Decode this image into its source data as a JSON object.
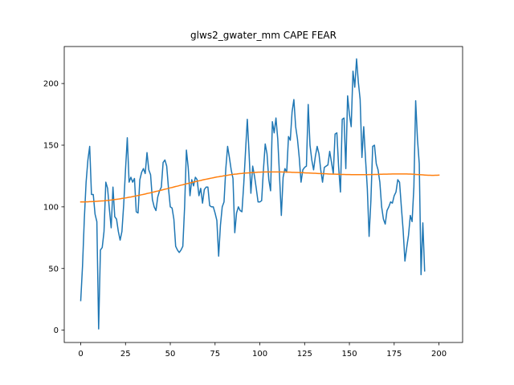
{
  "chart_data": {
    "type": "line",
    "title": "glws2_gwater_mm CAPE FEAR",
    "xlabel": "",
    "ylabel": "",
    "xlim": [
      -9.2,
      213.2
    ],
    "ylim": [
      -10,
      230
    ],
    "x_ticks": [
      0,
      25,
      50,
      75,
      100,
      125,
      150,
      175,
      200
    ],
    "y_ticks": [
      0,
      50,
      100,
      150,
      200
    ],
    "grid": false,
    "series": [
      {
        "color": "#1f77b4",
        "values": [
          24,
          52,
          90,
          120,
          138,
          149,
          110,
          110,
          94,
          88,
          1,
          65,
          67,
          80,
          120,
          115,
          98,
          83,
          116,
          92,
          90,
          80,
          73,
          80,
          102,
          130,
          156,
          120,
          124,
          120,
          123,
          96,
          95,
          122,
          128,
          131,
          127,
          144,
          130,
          126,
          106,
          100,
          97,
          108,
          113,
          116,
          136,
          138,
          133,
          115,
          100,
          99,
          90,
          68,
          65,
          63,
          65,
          68,
          100,
          146,
          132,
          109,
          122,
          117,
          124,
          122,
          109,
          115,
          103,
          114,
          116,
          116,
          101,
          100,
          100,
          95,
          89,
          60,
          85,
          100,
          104,
          131,
          149,
          140,
          130,
          123,
          79,
          95,
          100,
          97,
          96,
          118,
          145,
          171,
          143,
          111,
          133,
          125,
          115,
          104,
          104,
          105,
          130,
          151,
          143,
          122,
          113,
          169,
          160,
          172,
          155,
          125,
          93,
          124,
          131,
          128,
          157,
          154,
          177,
          187,
          165,
          155,
          140,
          120,
          130,
          132,
          133,
          183,
          150,
          138,
          130,
          141,
          149,
          143,
          130,
          120,
          132,
          133,
          134,
          145,
          136,
          127,
          159,
          160,
          132,
          112,
          171,
          172,
          131,
          190,
          175,
          165,
          210,
          197,
          220,
          201,
          187,
          140,
          165,
          139,
          115,
          76,
          105,
          149,
          150,
          135,
          130,
          120,
          100,
          90,
          86,
          97,
          100,
          104,
          103,
          109,
          112,
          122,
          120,
          100,
          81,
          56,
          67,
          77,
          93,
          88,
          116,
          186,
          155,
          135,
          45,
          87,
          48
        ]
      },
      {
        "color": "#ff7f0e",
        "values": [
          104.0,
          104.0,
          104.0,
          104.1,
          104.1,
          104.2,
          104.2,
          104.3,
          104.4,
          104.5,
          104.6,
          104.7,
          104.8,
          104.9,
          105.1,
          105.2,
          105.4,
          105.5,
          105.7,
          105.9,
          106.1,
          106.3,
          106.5,
          106.8,
          107.0,
          107.2,
          107.5,
          107.8,
          108.0,
          108.3,
          108.6,
          108.9,
          109.2,
          109.5,
          109.8,
          110.1,
          110.4,
          110.8,
          111.1,
          111.4,
          111.8,
          112.1,
          112.5,
          112.8,
          113.2,
          113.5,
          113.9,
          114.3,
          114.6,
          115.0,
          115.4,
          115.7,
          116.1,
          116.5,
          116.8,
          117.2,
          117.6,
          117.9,
          118.3,
          118.7,
          119.0,
          119.4,
          119.7,
          120.1,
          120.4,
          120.8,
          121.1,
          121.4,
          121.8,
          122.1,
          122.4,
          122.7,
          123.0,
          123.3,
          123.6,
          123.9,
          124.2,
          124.4,
          124.7,
          124.9,
          125.2,
          125.4,
          125.6,
          125.9,
          126.1,
          126.3,
          126.5,
          126.6,
          126.8,
          127.0,
          127.1,
          127.3,
          127.4,
          127.5,
          127.6,
          127.7,
          127.8,
          127.9,
          128.0,
          128.1,
          128.1,
          128.2,
          128.2,
          128.3,
          128.3,
          128.3,
          128.3,
          128.3,
          128.3,
          128.3,
          128.3,
          128.3,
          128.3,
          128.2,
          128.2,
          128.2,
          128.1,
          128.1,
          128.0,
          128.0,
          127.9,
          127.9,
          127.8,
          127.7,
          127.7,
          127.6,
          127.5,
          127.5,
          127.4,
          127.3,
          127.2,
          127.2,
          127.1,
          127.0,
          127.0,
          126.9,
          126.8,
          126.8,
          126.7,
          126.6,
          126.6,
          126.5,
          126.5,
          126.4,
          126.4,
          126.3,
          126.3,
          126.3,
          126.2,
          126.2,
          126.2,
          126.1,
          126.1,
          126.1,
          126.1,
          126.1,
          126.1,
          126.1,
          126.1,
          126.1,
          126.1,
          126.2,
          126.2,
          126.2,
          126.3,
          126.3,
          126.3,
          126.4,
          126.4,
          126.5,
          126.5,
          126.5,
          126.6,
          126.6,
          126.7,
          126.7,
          126.7,
          126.7,
          126.7,
          126.7,
          126.7,
          126.7,
          126.7,
          126.6,
          126.6,
          126.5,
          126.4,
          126.3,
          126.2,
          126.1,
          126.0,
          125.9,
          125.8,
          125.7,
          125.6,
          125.6,
          125.5,
          125.5,
          125.6,
          125.6,
          125.7
        ]
      }
    ]
  }
}
